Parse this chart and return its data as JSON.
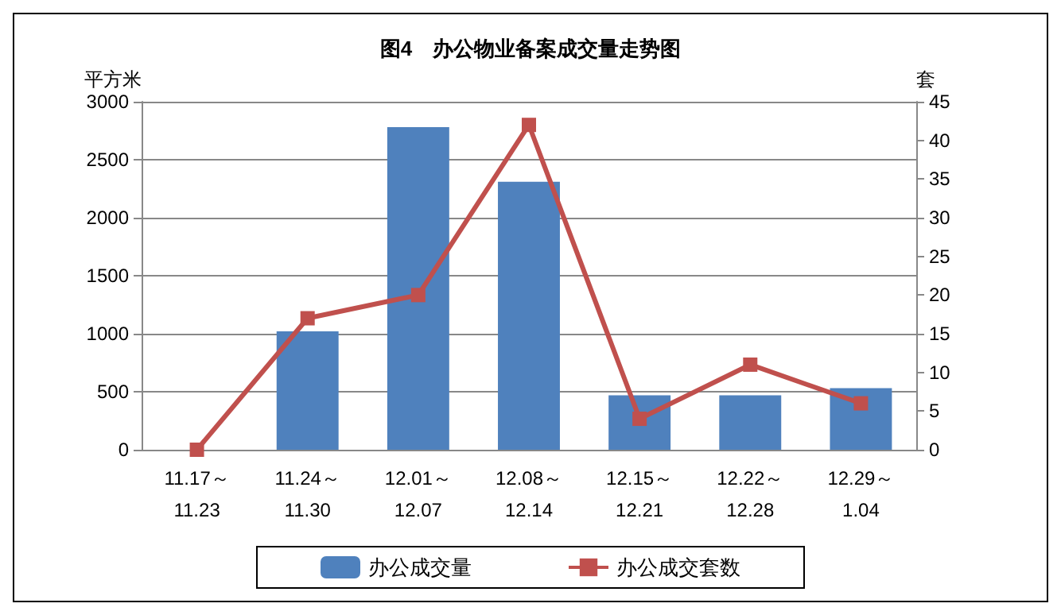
{
  "chart_data": {
    "type": "bar",
    "title": "图4　办公物业备案成交量走势图",
    "ylabel": "平方米",
    "y2label": "套",
    "categories": [
      "11.17～\n11.23",
      "11.24～\n11.30",
      "12.01～\n12.07",
      "12.08～\n12.14",
      "12.15～\n12.21",
      "12.22～\n12.28",
      "12.29～\n1.04"
    ],
    "series": [
      {
        "name": "办公成交量",
        "color": "#4f81bd",
        "values": [
          0,
          1020,
          2780,
          2310,
          470,
          470,
          530
        ]
      },
      {
        "name": "办公成交套数",
        "type": "line",
        "axis": "y2",
        "color": "#c0504d",
        "marker": "square",
        "values": [
          0,
          17,
          20,
          42,
          4,
          11,
          6
        ]
      }
    ],
    "ylim": [
      0,
      3000
    ],
    "yticks": [
      0,
      500,
      1000,
      1500,
      2000,
      2500,
      3000
    ],
    "y2lim": [
      0,
      45
    ],
    "y2ticks": [
      0,
      5,
      10,
      15,
      20,
      25,
      30,
      35,
      40,
      45
    ],
    "grid": "y",
    "legend": "bottom"
  }
}
